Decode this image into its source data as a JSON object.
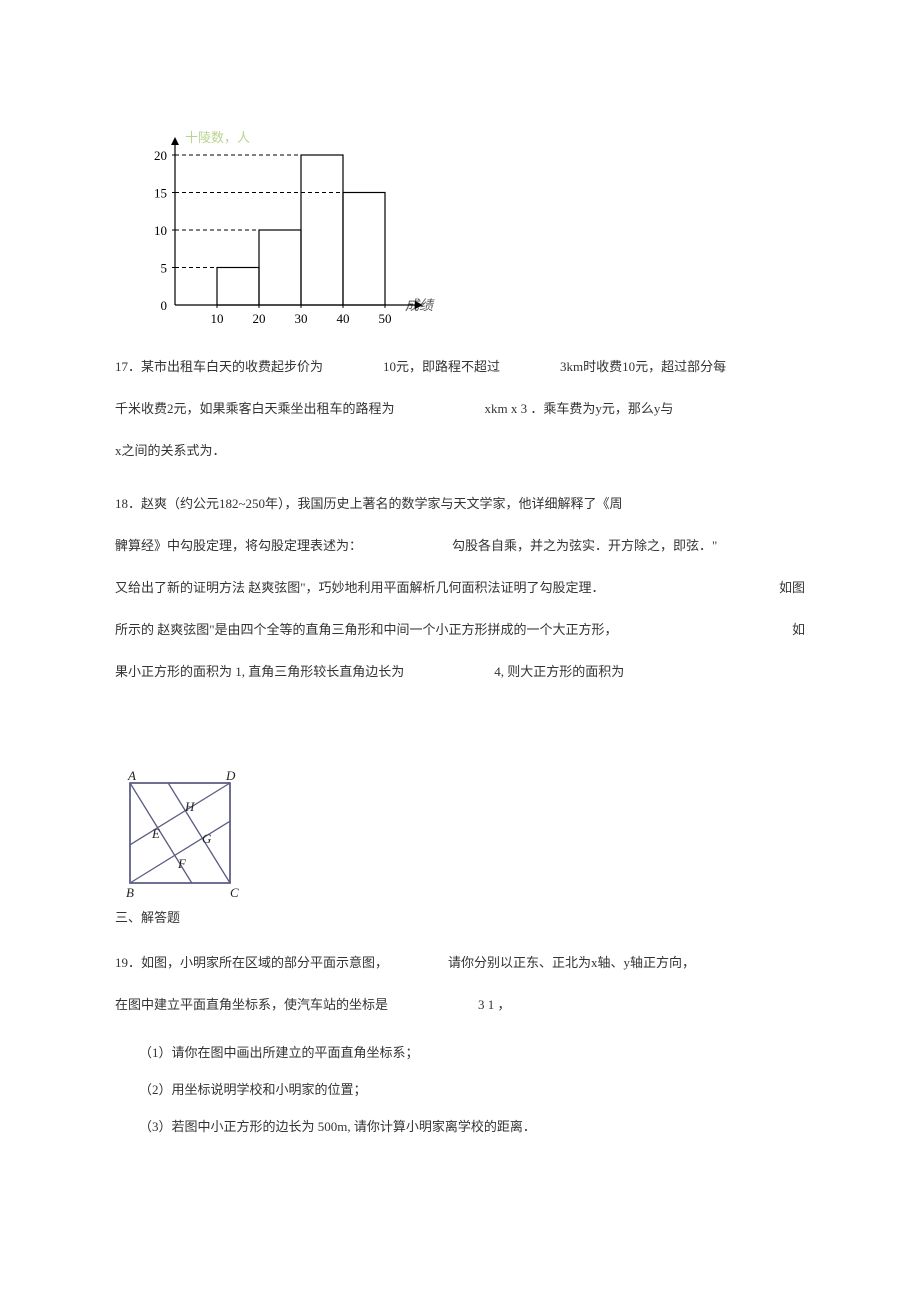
{
  "chart": {
    "ylabel": "十陵数，人",
    "xlabel": "成绩 / 分",
    "y_ticks": [
      0,
      5,
      10,
      15,
      20
    ],
    "x_ticks": [
      0,
      10,
      20,
      30,
      40,
      50
    ],
    "bars": [
      {
        "x_start": 10,
        "x_end": 20,
        "height": 5
      },
      {
        "x_start": 20,
        "x_end": 30,
        "height": 10
      },
      {
        "x_start": 30,
        "x_end": 40,
        "height": 20
      },
      {
        "x_start": 40,
        "x_end": 50,
        "height": 15
      }
    ],
    "axis_color": "#000000",
    "bar_stroke": "#000000",
    "dash_stroke": "#000000",
    "bg": "#ffffff",
    "ylabel_color": "#b9d48f",
    "xlabel_color": "#595959",
    "tick_fontsize": 13
  },
  "q17": {
    "num": "17",
    "p1": "．某市出租车白天的收费起步价为",
    "p2": "10元，即路程不超过",
    "p3": "3km时收费10元，超过部分每",
    "p4": "千米收费2元，如果乘客白天乘坐出租车的路程为",
    "p5": "xkm x  3 ．乘车费为y元，那么y与",
    "p6": "x之间的关系式为．"
  },
  "q18": {
    "num": "18",
    "p1": "．赵爽（约公元182~250年），我国历史上著名的数学家与天文学家，他详细解释了《周",
    "p2": "髀算经》中勾股定理，将勾股定理表述为：",
    "p3": "勾股各自乘，并之为弦实．开方除之，即弦．\"",
    "p4": "又给出了新的证明方法 赵爽弦图\"，巧妙地利用平面解析几何面积法证明了勾股定理．",
    "p5": "如图",
    "p6": "所示的 赵爽弦图\"是由四个全等的直角三角形和中间一个小正方形拼成的一个大正方形，",
    "p7": "如",
    "p8": "果小正方形的面积为 1, 直角三角形较长直角边长为",
    "p9": "4, 则大正方形的面积为"
  },
  "zhaoshuang": {
    "labels": {
      "A": "A",
      "B": "B",
      "C": "C",
      "D": "D",
      "E": "E",
      "F": "F",
      "G": "G",
      "H": "H"
    },
    "stroke": "#5b5b85",
    "label_font": "italic 13px serif"
  },
  "section3": "三、解答题",
  "q19": {
    "num": "19",
    "p1": "．如图，小明家所在区域的部分平面示意图，",
    "p2": "请你分别以正东、正北为x轴、y轴正方向，",
    "p3": "在图中建立平面直角坐标系，使汽车站的坐标是",
    "p4": "3 1 ，",
    "sub1": "（1）请你在图中画出所建立的平面直角坐标系；",
    "sub2": "（2）用坐标说明学校和小明家的位置；",
    "sub3": "（3）若图中小正方形的边长为 500m, 请你计算小明家离学校的距离．"
  }
}
